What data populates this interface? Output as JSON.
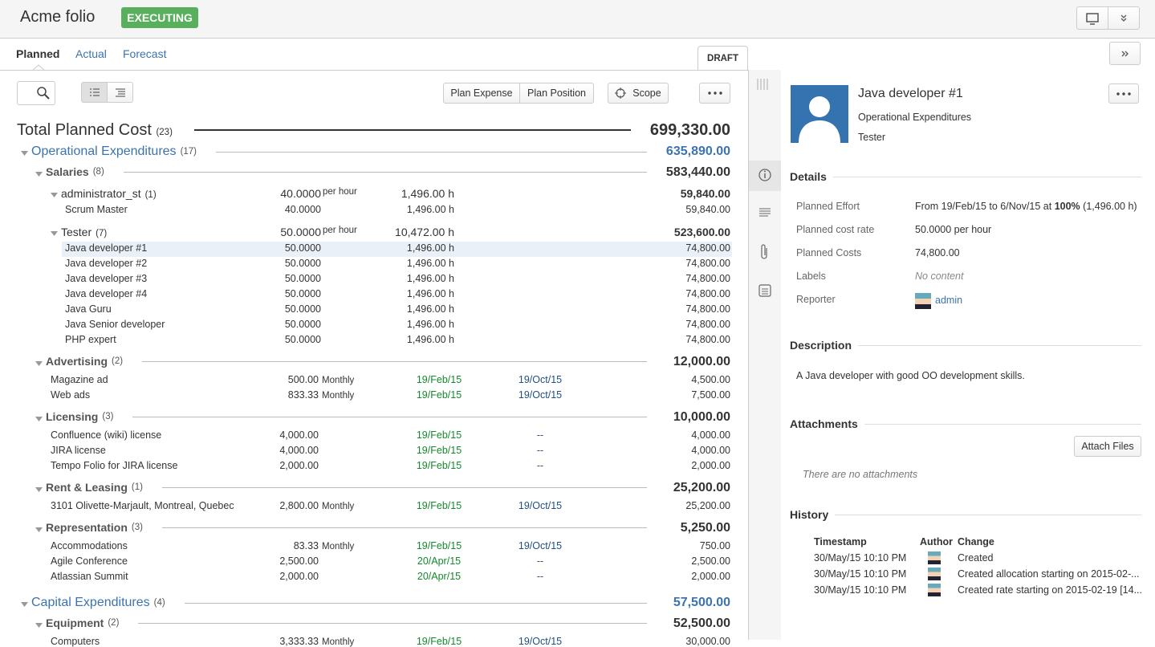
{
  "header": {
    "title": "Acme folio",
    "status": "EXECUTING"
  },
  "tabs": [
    "Planned",
    "Actual",
    "Forecast"
  ],
  "draft": "DRAFT",
  "toolbar": {
    "plan_expense": "Plan Expense",
    "plan_position": "Plan Position",
    "scope": "Scope"
  },
  "total": {
    "label": "Total Planned Cost",
    "count": "(23)",
    "amount": "699,330.00"
  },
  "rows": [
    {
      "kind": "category",
      "name": "Operational Expenditures",
      "count": "(17)",
      "amount": "635,890.00"
    },
    {
      "kind": "group",
      "name": "Salaries",
      "count": "(8)",
      "amount": "583,440.00"
    },
    {
      "kind": "role",
      "name": "administrator_st",
      "count": "(1)",
      "rate": "40.0000",
      "unit": "per hour",
      "effort": "1,496.00 h",
      "amount": "59,840.00"
    },
    {
      "kind": "item",
      "name": "Scrum Master",
      "rate": "40.0000",
      "effort": "1,496.00 h",
      "amount": "59,840.00"
    },
    {
      "kind": "role",
      "name": "Tester",
      "count": "(7)",
      "rate": "50.0000",
      "unit": "per hour",
      "effort": "10,472.00 h",
      "amount": "523,600.00"
    },
    {
      "kind": "item",
      "name": "Java developer #1",
      "rate": "50.0000",
      "effort": "1,496.00 h",
      "amount": "74,800.00",
      "selected": true
    },
    {
      "kind": "item",
      "name": "Java developer #2",
      "rate": "50.0000",
      "effort": "1,496.00 h",
      "amount": "74,800.00"
    },
    {
      "kind": "item",
      "name": "Java developer #3",
      "rate": "50.0000",
      "effort": "1,496.00 h",
      "amount": "74,800.00"
    },
    {
      "kind": "item",
      "name": "Java developer #4",
      "rate": "50.0000",
      "effort": "1,496.00 h",
      "amount": "74,800.00"
    },
    {
      "kind": "item",
      "name": "Java Guru",
      "rate": "50.0000",
      "effort": "1,496.00 h",
      "amount": "74,800.00"
    },
    {
      "kind": "item",
      "name": "Java Senior developer",
      "rate": "50.0000",
      "effort": "1,496.00 h",
      "amount": "74,800.00"
    },
    {
      "kind": "item",
      "name": "PHP expert",
      "rate": "50.0000",
      "effort": "1,496.00 h",
      "amount": "74,800.00"
    },
    {
      "kind": "group",
      "name": "Advertising",
      "count": "(2)",
      "amount": "12,000.00"
    },
    {
      "kind": "expense",
      "name": "Magazine ad",
      "rate": "500.00",
      "unit": "Monthly",
      "start": "19/Feb/15",
      "end": "19/Oct/15",
      "amount": "4,500.00"
    },
    {
      "kind": "expense",
      "name": "Web ads",
      "rate": "833.33",
      "unit": "Monthly",
      "start": "19/Feb/15",
      "end": "19/Oct/15",
      "amount": "7,500.00"
    },
    {
      "kind": "group",
      "name": "Licensing",
      "count": "(3)",
      "amount": "10,000.00"
    },
    {
      "kind": "expense",
      "name": "Confluence (wiki) license",
      "rate": "4,000.00",
      "start": "19/Feb/15",
      "end": "--",
      "amount": "4,000.00"
    },
    {
      "kind": "expense",
      "name": "JIRA license",
      "rate": "4,000.00",
      "start": "19/Feb/15",
      "end": "--",
      "amount": "4,000.00"
    },
    {
      "kind": "expense",
      "name": "Tempo Folio for JIRA license",
      "rate": "2,000.00",
      "start": "19/Feb/15",
      "end": "--",
      "amount": "2,000.00"
    },
    {
      "kind": "group",
      "name": "Rent & Leasing",
      "count": "(1)",
      "amount": "25,200.00"
    },
    {
      "kind": "expense",
      "name": "3101 Olivette-Marjault, Montreal, Quebec",
      "rate": "2,800.00",
      "unit": "Monthly",
      "start": "19/Feb/15",
      "end": "19/Oct/15",
      "amount": "25,200.00"
    },
    {
      "kind": "group",
      "name": "Representation",
      "count": "(3)",
      "amount": "5,250.00"
    },
    {
      "kind": "expense",
      "name": "Accommodations",
      "rate": "83.33",
      "unit": "Monthly",
      "start": "19/Feb/15",
      "end": "19/Oct/15",
      "amount": "750.00"
    },
    {
      "kind": "expense",
      "name": "Agile Conference",
      "rate": "2,500.00",
      "start": "20/Apr/15",
      "end": "--",
      "amount": "2,500.00"
    },
    {
      "kind": "expense",
      "name": "Atlassian Summit",
      "rate": "2,000.00",
      "start": "20/Apr/15",
      "end": "--",
      "amount": "2,000.00"
    },
    {
      "kind": "category",
      "name": "Capital Expenditures",
      "count": "(4)",
      "amount": "57,500.00"
    },
    {
      "kind": "group",
      "name": "Equipment",
      "count": "(2)",
      "amount": "52,500.00"
    },
    {
      "kind": "expense",
      "name": "Computers",
      "rate": "3,333.33",
      "unit": "Monthly",
      "start": "19/Feb/15",
      "end": "19/Oct/15",
      "amount": "30,000.00"
    }
  ],
  "detail": {
    "title": "Java developer #1",
    "category": "Operational Expenditures",
    "role": "Tester",
    "sections": {
      "details": "Details",
      "description": "Description",
      "attachments": "Attachments",
      "history": "History"
    },
    "fields": [
      {
        "label": "Planned Effort",
        "value": [
          "From 19/Feb/15 to 6/Nov/15 at ",
          "100%",
          " (1,496.00 h)"
        ]
      },
      {
        "label": "Planned cost rate",
        "value": "50.0000 per hour"
      },
      {
        "label": "Planned Costs",
        "value": "74,800.00"
      },
      {
        "label": "Labels",
        "value": "No content"
      },
      {
        "label": "Reporter",
        "value": "admin"
      }
    ],
    "description": "A Java developer with good OO development skills.",
    "attach_button": "Attach Files",
    "no_attachments": "There are no attachments",
    "history": {
      "columns": [
        "Timestamp",
        "Author",
        "Change"
      ],
      "rows": [
        {
          "timestamp": "30/May/15 10:10 PM",
          "change": "Created"
        },
        {
          "timestamp": "30/May/15 10:10 PM",
          "change": "Created allocation starting on 2015-02-..."
        },
        {
          "timestamp": "30/May/15 10:10 PM",
          "change": "Created rate starting on 2015-02-19 [14..."
        }
      ]
    }
  }
}
